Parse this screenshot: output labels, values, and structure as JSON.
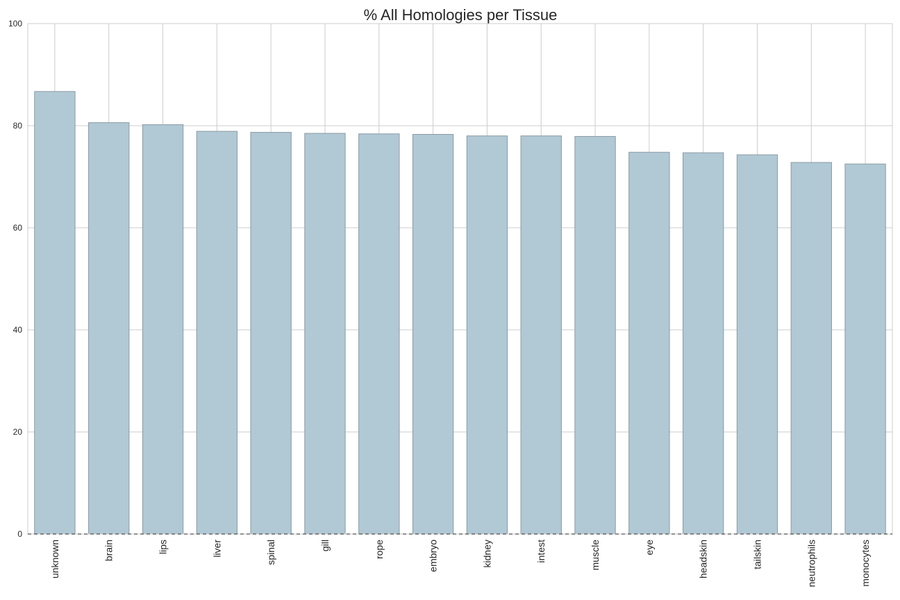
{
  "chart_data": {
    "type": "bar",
    "title": "% All Homologies per Tissue",
    "xlabel": "",
    "ylabel": "",
    "categories": [
      "unknown",
      "brain",
      "lips",
      "liver",
      "spinal",
      "gill",
      "rope",
      "embryo",
      "kidney",
      "intest",
      "muscle",
      "eye",
      "headskin",
      "tailskin",
      "neutrophils",
      "monocytes"
    ],
    "values": [
      86.7,
      80.6,
      80.2,
      78.9,
      78.7,
      78.5,
      78.4,
      78.3,
      78.0,
      78.0,
      77.9,
      74.8,
      74.7,
      74.3,
      72.8,
      72.5
    ],
    "ylim": [
      0,
      100
    ],
    "yticks": [
      0,
      20,
      40,
      60,
      80,
      100
    ],
    "grid": true,
    "bar_color": "#b1c8d5",
    "legend": "none"
  }
}
